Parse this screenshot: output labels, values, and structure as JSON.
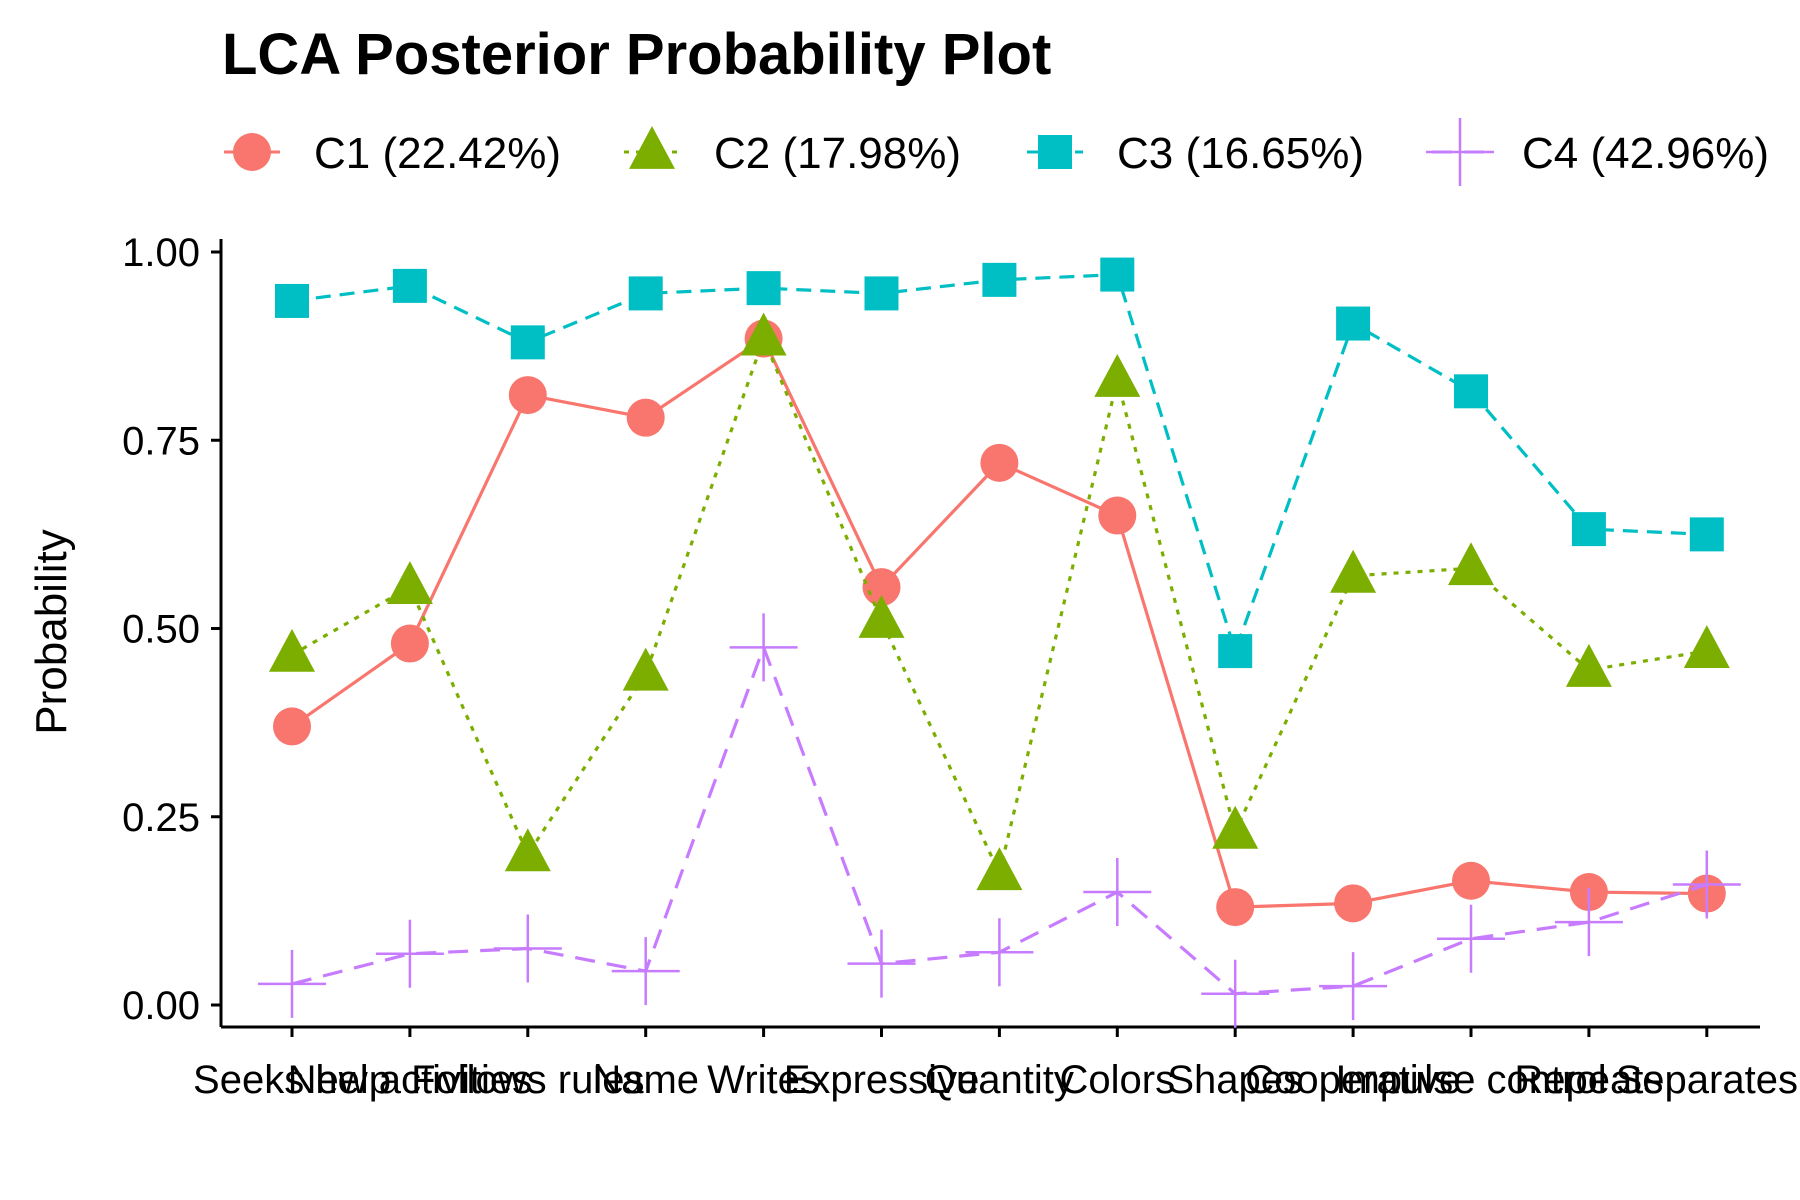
{
  "chart_data": {
    "type": "line",
    "title": "LCA Posterior Probability Plot",
    "xlabel": "",
    "ylabel": "Probability",
    "ylim": [
      0,
      1
    ],
    "yticks": [
      "0.00",
      "0.25",
      "0.50",
      "0.75",
      "1.00"
    ],
    "grid": false,
    "legend_position": "top",
    "categories": [
      "Seeks help",
      "New activities",
      "Follows rules",
      "Name",
      "Writes",
      "Expressive",
      "Quantity",
      "Colors",
      "Shapes",
      "Cooperative",
      "Impulse control",
      "Repeats",
      "Separates"
    ],
    "series": [
      {
        "name": "C1 (22.42%)",
        "color": "#F8766D",
        "marker": "circle",
        "line": "solid",
        "values": [
          0.37,
          0.48,
          0.81,
          0.78,
          0.885,
          0.555,
          0.72,
          0.65,
          0.13,
          0.135,
          0.165,
          0.15,
          0.148
        ]
      },
      {
        "name": "C2 (17.98%)",
        "color": "#7CAE00",
        "marker": "triangle",
        "line": "dotted",
        "values": [
          0.465,
          0.555,
          0.2,
          0.44,
          0.885,
          0.51,
          0.175,
          0.83,
          0.23,
          0.57,
          0.58,
          0.445,
          0.47
        ]
      },
      {
        "name": "C3 (16.65%)",
        "color": "#00BFC4",
        "marker": "square",
        "line": "dashed",
        "values": [
          0.935,
          0.955,
          0.88,
          0.945,
          0.952,
          0.945,
          0.963,
          0.97,
          0.47,
          0.905,
          0.815,
          0.632,
          0.625
        ]
      },
      {
        "name": "C4 (42.96%)",
        "color": "#C77CFF",
        "marker": "plus",
        "line": "longdash",
        "values": [
          0.028,
          0.068,
          0.075,
          0.045,
          0.475,
          0.055,
          0.07,
          0.15,
          0.015,
          0.025,
          0.088,
          0.11,
          0.16
        ]
      }
    ]
  }
}
